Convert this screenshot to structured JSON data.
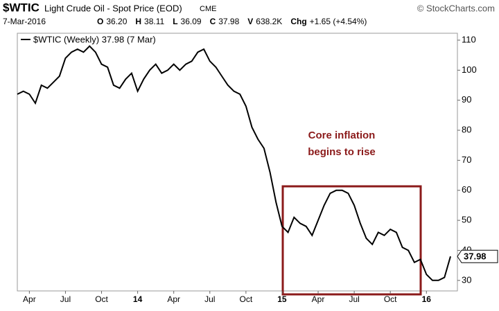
{
  "header": {
    "symbol": "$WTIC",
    "name": "Light Crude Oil - Spot Price (EOD)",
    "exchange": "CME",
    "credit": "© StockCharts.com",
    "date": "7-Mar-2016",
    "quote": [
      "O",
      "36.20",
      "H",
      "38.11",
      "L",
      "36.09",
      "C",
      "37.98",
      "V",
      "638.2K",
      "Chg",
      "+1.65 (+4.54%)"
    ]
  },
  "chart_data": {
    "type": "line",
    "legend": "$WTIC (Weekly) 37.98 (7 Mar)",
    "color": "#000000",
    "categories": [
      null,
      null,
      "Apr",
      null,
      null,
      null,
      null,
      null,
      "Jul",
      null,
      null,
      null,
      null,
      null,
      "Oct",
      null,
      null,
      null,
      null,
      null,
      "14",
      null,
      null,
      null,
      null,
      null,
      "Apr",
      null,
      null,
      null,
      null,
      null,
      "Jul",
      null,
      null,
      null,
      null,
      null,
      "Oct",
      null,
      null,
      null,
      null,
      null,
      "15",
      null,
      null,
      null,
      null,
      null,
      "Apr",
      null,
      null,
      null,
      null,
      null,
      "Jul",
      null,
      null,
      null,
      null,
      null,
      "Oct",
      null,
      null,
      null,
      null,
      null,
      "16",
      null,
      null,
      null,
      null
    ],
    "values": [
      92,
      93,
      92,
      89,
      95,
      94,
      96,
      98,
      104,
      106,
      107,
      106,
      108,
      106,
      102,
      101,
      95,
      94,
      97,
      99,
      93,
      97,
      100,
      102,
      99,
      100,
      102,
      100,
      102,
      103,
      106,
      107,
      103,
      101,
      98,
      95,
      93,
      92,
      88,
      81,
      77,
      74,
      66,
      56,
      48,
      46,
      51,
      49,
      48,
      45,
      50,
      55,
      59,
      60,
      60,
      59,
      55,
      49,
      44,
      42,
      46,
      45,
      47,
      46,
      41,
      40,
      36,
      37,
      32,
      30,
      30,
      31,
      37.98
    ],
    "ylim": [
      26.5,
      112.3
    ],
    "yticks": [
      30,
      40,
      50,
      60,
      70,
      80,
      90,
      100,
      110
    ],
    "last_value_label": "37.98",
    "annotation": [
      "Core inflation",
      "begins to rise"
    ]
  }
}
